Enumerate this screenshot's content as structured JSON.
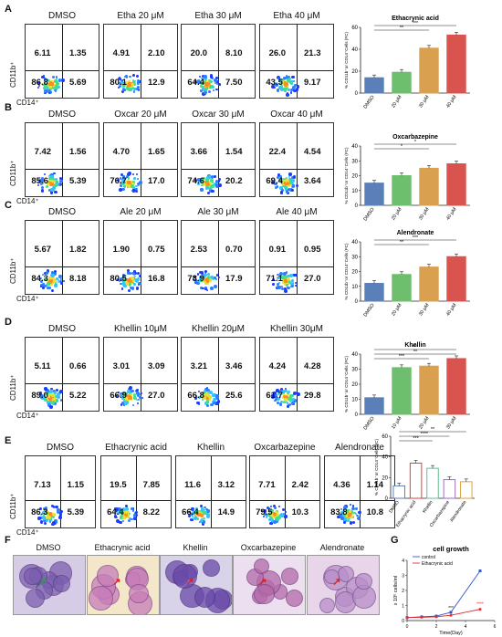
{
  "axis_labels": {
    "y": "CD11b⁺",
    "x": "CD14⁺"
  },
  "rows": [
    {
      "label": "A",
      "panels": [
        {
          "title": "DMSO",
          "q": [
            "6.11",
            "1.35",
            "86.8",
            "5.69"
          ]
        },
        {
          "title": "Etha 20 μM",
          "q": [
            "4.91",
            "2.10",
            "80.1",
            "12.9"
          ]
        },
        {
          "title": "Etha 30 μM",
          "q": [
            "20.0",
            "8.10",
            "64.4",
            "7.50"
          ]
        },
        {
          "title": "Etha 40 μM",
          "q": [
            "26.0",
            "21.3",
            "43.5",
            "9.17"
          ]
        }
      ]
    },
    {
      "label": "B",
      "panels": [
        {
          "title": "DMSO",
          "q": [
            "7.42",
            "1.56",
            "85.6",
            "5.39"
          ]
        },
        {
          "title": "Oxcar 20 μM",
          "q": [
            "4.70",
            "1.65",
            "76.7",
            "17.0"
          ]
        },
        {
          "title": "Oxcar 30 μM",
          "q": [
            "3.66",
            "1.54",
            "74.6",
            "20.2"
          ]
        },
        {
          "title": "Oxcar 40 μM",
          "q": [
            "22.4",
            "4.54",
            "69.4",
            "3.64"
          ]
        }
      ]
    },
    {
      "label": "C",
      "panels": [
        {
          "title": "DMSO",
          "q": [
            "5.67",
            "1.82",
            "84.3",
            "8.18"
          ]
        },
        {
          "title": "Ale 20 μM",
          "q": [
            "1.90",
            "0.75",
            "80.5",
            "16.8"
          ]
        },
        {
          "title": "Ale 30 μM",
          "q": [
            "2.53",
            "0.70",
            "78.9",
            "17.9"
          ]
        },
        {
          "title": "Ale 40 μM",
          "q": [
            "0.91",
            "0.95",
            "71.1",
            "27.0"
          ]
        }
      ]
    },
    {
      "label": "D",
      "panels": [
        {
          "title": "DMSO",
          "q": [
            "5.11",
            "0.66",
            "89.0",
            "5.22"
          ]
        },
        {
          "title": "Khellin 10μM",
          "q": [
            "3.01",
            "3.09",
            "66.9",
            "27.0"
          ]
        },
        {
          "title": "Khellin 20μM",
          "q": [
            "3.21",
            "3.46",
            "66.8",
            "25.6"
          ]
        },
        {
          "title": "Khellin 30μM",
          "q": [
            "4.24",
            "4.28",
            "61.7",
            "29.8"
          ]
        }
      ]
    }
  ],
  "row_e": {
    "label": "E",
    "panels": [
      {
        "title": "DMSO",
        "q": [
          "7.13",
          "1.15",
          "86.3",
          "5.39"
        ]
      },
      {
        "title": "Ethacrynic acid",
        "q": [
          "19.5",
          "7.85",
          "64.4",
          "8.22"
        ]
      },
      {
        "title": "Khellin",
        "q": [
          "11.6",
          "3.12",
          "66.4",
          "14.9"
        ]
      },
      {
        "title": "Oxcarbazepine",
        "q": [
          "7.71",
          "2.42",
          "79.5",
          "10.3"
        ]
      },
      {
        "title": "Alendronate",
        "q": [
          "4.36",
          "1.14",
          "83.8",
          "10.8"
        ]
      }
    ]
  },
  "chart_data": [
    {
      "type": "bar",
      "title": "Ethacrynic acid",
      "ylabel": "% CD11b⁺or CD14⁺Cells (FC)",
      "categories": [
        "DMSO",
        "20 μM",
        "30 μM",
        "40 μM"
      ],
      "values": [
        14,
        19,
        41,
        53
      ],
      "ylim": [
        0,
        60
      ],
      "yticks": [
        "0",
        "20",
        "40",
        "60"
      ],
      "colors": [
        "#5b7fb8",
        "#6dbf6d",
        "#d9a050",
        "#d9534f"
      ],
      "sig": [
        "**",
        "***"
      ]
    },
    {
      "type": "bar",
      "title": "Oxcarbazepine",
      "ylabel": "% CD11b⁺or CD14⁺Cells (FC)",
      "categories": [
        "DMSO",
        "20 μM",
        "30 μM",
        "40 μM"
      ],
      "values": [
        15,
        20,
        25,
        28
      ],
      "ylim": [
        0,
        40
      ],
      "yticks": [
        "0",
        "10",
        "20",
        "30",
        "40"
      ],
      "colors": [
        "#5b7fb8",
        "#6dbf6d",
        "#d9a050",
        "#d9534f"
      ],
      "sig": [
        "*",
        "*"
      ]
    },
    {
      "type": "bar",
      "title": "Alendronate",
      "ylabel": "% CD11b⁺or CD14⁺Cells (FC)",
      "categories": [
        "DMSO",
        "20 μM",
        "30 μM",
        "40 μM"
      ],
      "values": [
        12,
        18,
        23,
        30
      ],
      "ylim": [
        0,
        40
      ],
      "yticks": [
        "0",
        "10",
        "20",
        "30",
        "40"
      ],
      "colors": [
        "#5b7fb8",
        "#6dbf6d",
        "#d9a050",
        "#d9534f"
      ],
      "sig": [
        "**",
        "***"
      ]
    },
    {
      "type": "bar",
      "title": "Khellin",
      "ylabel": "% CD11b⁺or CD14⁺Cells (FC)",
      "categories": [
        "DMSO",
        "10 μM",
        "20 μM",
        "30 μM"
      ],
      "values": [
        11,
        31,
        32,
        37
      ],
      "ylim": [
        0,
        40
      ],
      "yticks": [
        "0",
        "10",
        "20",
        "30",
        "40"
      ],
      "colors": [
        "#5b7fb8",
        "#6dbf6d",
        "#d9a050",
        "#d9534f"
      ],
      "sig": [
        "***",
        "**",
        "***"
      ]
    },
    {
      "type": "bar",
      "title": "",
      "ylabel": "% CD11b⁺or CD14⁺Cells (FC)",
      "categories": [
        "DMSO",
        "Ethacrynic acid",
        "Khellin",
        "Oxcarbazepine",
        "Alendronate"
      ],
      "values": [
        12,
        34,
        29,
        18,
        16
      ],
      "ylim": [
        0,
        60
      ],
      "yticks": [
        "0",
        "20",
        "40",
        "60"
      ],
      "colors": [
        "#5b7fb8",
        "#e0403a",
        "#5fbf8f",
        "#9b6fc0",
        "#e0a040"
      ],
      "sig": [
        "***",
        "****",
        "**"
      ]
    },
    {
      "type": "line",
      "title": "cell growth",
      "xlabel": "Time(Day)",
      "ylabel": "x 10⁶ cells/ml",
      "x": [
        0,
        1,
        2,
        3,
        5
      ],
      "xticks": [
        "0",
        "2",
        "4",
        "6"
      ],
      "xlim": [
        0,
        6
      ],
      "ylim": [
        0,
        4
      ],
      "yticks": [
        "0",
        "1",
        "2",
        "3",
        "4"
      ],
      "series": [
        {
          "name": "control",
          "color": "#3355cc",
          "values": [
            0.2,
            0.25,
            0.3,
            0.55,
            3.3
          ]
        },
        {
          "name": "Ethacrynic acid",
          "color": "#e03030",
          "values": [
            0.2,
            0.22,
            0.25,
            0.35,
            0.75
          ]
        }
      ],
      "sig": [
        "***",
        "****"
      ]
    }
  ],
  "row_f": {
    "label": "F",
    "titles": [
      "DMSO",
      "Ethacrynic acid",
      "Khellin",
      "Oxcarbazepine",
      "Alendronate"
    ]
  },
  "row_g": {
    "label": "G"
  }
}
